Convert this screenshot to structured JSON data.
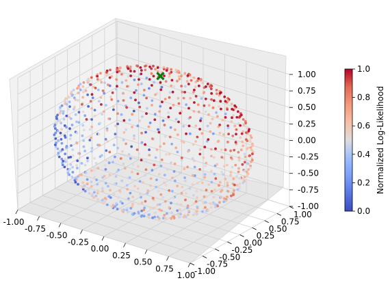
{
  "chart_data": {
    "type": "scatter",
    "title": "",
    "projection": "3d",
    "surface": "unit sphere (fibonacci-distributed points)",
    "point_count": 900,
    "colormap": "coolwarm",
    "x_range": [
      -1.0,
      1.0
    ],
    "y_range": [
      -1.0,
      1.0
    ],
    "z_range": [
      -1.0,
      1.0
    ],
    "x_ticks": [
      "-1.00",
      "-0.75",
      "-0.50",
      "-0.25",
      "0.00",
      "0.25",
      "0.50",
      "0.75",
      "1.00"
    ],
    "y_ticks": [
      "-1.00",
      "-0.75",
      "-0.50",
      "-0.25",
      "0.00",
      "0.25",
      "0.50",
      "0.75",
      "1.00"
    ],
    "z_ticks": [
      "-1.00",
      "-0.75",
      "-0.50",
      "-0.25",
      "0.00",
      "0.25",
      "0.50",
      "0.75",
      "1.00"
    ],
    "marker": {
      "shape": "x",
      "color": "#0a7d0a",
      "position": [
        0.05,
        0.05,
        1.0
      ]
    },
    "grid": true,
    "colorbar": {
      "label": "Normalized Log-Likelihood",
      "range": [
        0.0,
        1.0
      ],
      "ticks": [
        "0.0",
        "0.2",
        "0.4",
        "0.6",
        "0.8",
        "1.0"
      ]
    }
  }
}
